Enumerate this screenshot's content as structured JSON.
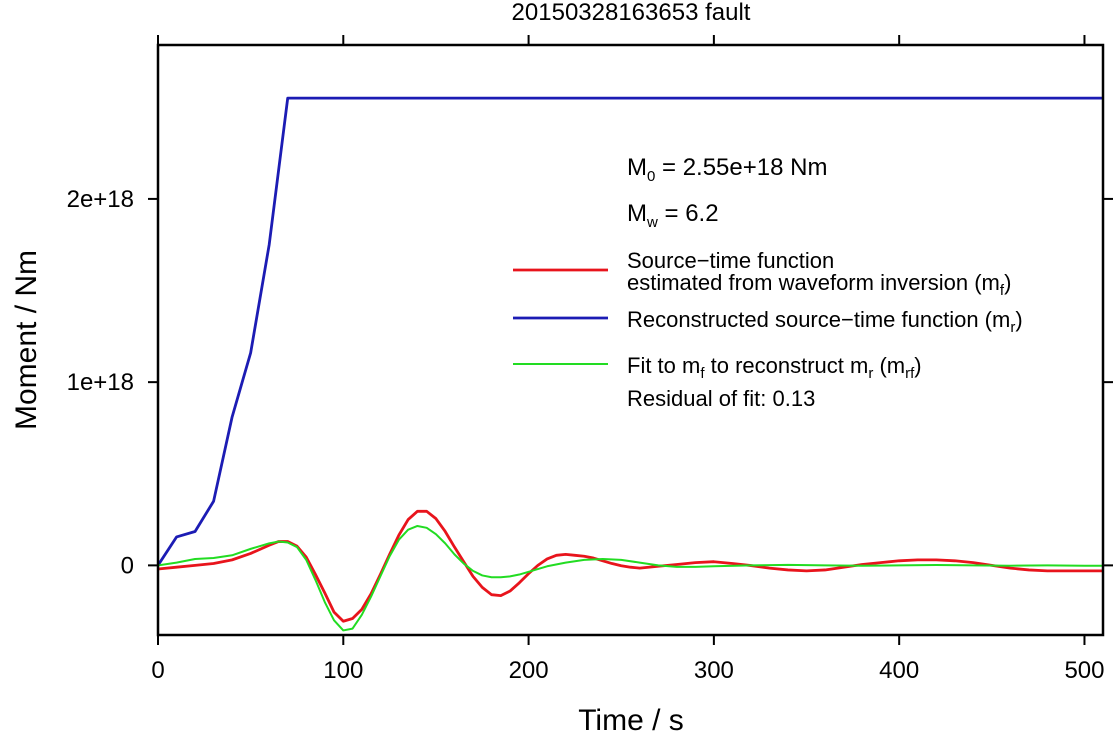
{
  "chart_data": {
    "type": "line",
    "title": "20150328163653 fault",
    "xlabel": "Time / s",
    "ylabel": "Moment / Nm",
    "xlim": [
      0,
      510
    ],
    "ylim": [
      -3.8e+17,
      2.84e+18
    ],
    "x_ticks": [
      0,
      100,
      200,
      300,
      400,
      500
    ],
    "x_tick_labels": [
      "0",
      "100",
      "200",
      "300",
      "400",
      "500"
    ],
    "y_ticks": [
      0,
      1e+18,
      2e+18
    ],
    "y_tick_labels": [
      "0",
      "1e+18",
      "2e+18"
    ],
    "grid": false,
    "legend_position": "top-right",
    "annotations": {
      "m0_symbol": "M",
      "m0_sub": "0",
      "m0_text": " = 2.55e+18 Nm",
      "mw_symbol": "M",
      "mw_sub": "w",
      "mw_text": " = 6.2",
      "residual": "Residual of fit: 0.13"
    },
    "legend": [
      {
        "color": "#e8141c",
        "lines": [
          [
            {
              "t": "Source−time function"
            }
          ],
          [
            {
              "t": "estimated from waveform inversion (m"
            },
            {
              "t": "f",
              "sub": true
            },
            {
              "t": ")"
            }
          ]
        ]
      },
      {
        "color": "#1c1cb4",
        "lines": [
          [
            {
              "t": "Reconstructed source−time function (m"
            },
            {
              "t": "r",
              "sub": true
            },
            {
              "t": ")"
            }
          ]
        ]
      },
      {
        "color": "#22dc22",
        "lines": [
          [
            {
              "t": "Fit to m"
            },
            {
              "t": "f",
              "sub": true
            },
            {
              "t": " to reconstruct m"
            },
            {
              "t": "r",
              "sub": true
            },
            {
              "t": " (m"
            },
            {
              "t": "rf",
              "sub": true
            },
            {
              "t": ")"
            }
          ]
        ]
      }
    ],
    "series": [
      {
        "color": "#e8141c",
        "width": 2.8,
        "x": [
          0,
          10,
          20,
          30,
          40,
          50,
          60,
          65,
          70,
          75,
          80,
          85,
          90,
          95,
          100,
          105,
          110,
          115,
          120,
          125,
          130,
          135,
          140,
          145,
          150,
          155,
          160,
          165,
          170,
          175,
          180,
          185,
          190,
          195,
          200,
          205,
          210,
          215,
          220,
          225,
          230,
          235,
          240,
          245,
          250,
          255,
          260,
          270,
          280,
          290,
          300,
          310,
          320,
          330,
          340,
          350,
          360,
          370,
          380,
          390,
          400,
          410,
          420,
          430,
          440,
          450,
          460,
          470,
          480,
          490,
          500,
          510
        ],
        "y": [
          -2e+16,
          -1e+16,
          0,
          1e+16,
          3e+16,
          6.5e+16,
          1.1e+17,
          1.3e+17,
          1.3e+17,
          1.05e+17,
          4.5e+16,
          -5e+16,
          -1.5e+17,
          -2.55e+17,
          -3.05e+17,
          -2.9e+17,
          -2.4e+17,
          -1.55e+17,
          -5e+16,
          6e+16,
          1.65e+17,
          2.5e+17,
          2.95e+17,
          2.95e+17,
          2.55e+17,
          1.85e+17,
          1e+17,
          2e+16,
          -6e+16,
          -1.2e+17,
          -1.6e+17,
          -1.65e+17,
          -1.4e+17,
          -9.5e+16,
          -4.5e+16,
          0,
          3.5e+16,
          5.5e+16,
          6e+16,
          5.5e+16,
          5e+16,
          4e+16,
          2.5e+16,
          1e+16,
          -2000000000000000.0,
          -1e+16,
          -1.5e+16,
          -5000000000000000.0,
          5000000000000000.0,
          1.5e+16,
          2e+16,
          1e+16,
          -1000000000000000.0,
          -1.5e+16,
          -2.5e+16,
          -3e+16,
          -2.5e+16,
          -1e+16,
          5000000000000000.0,
          1.5e+16,
          2.5e+16,
          3e+16,
          3e+16,
          2.5e+16,
          1.5e+16,
          0,
          -1.5e+16,
          -2.5e+16,
          -3e+16,
          -3e+16,
          -3e+16,
          -3e+16
        ]
      },
      {
        "color": "#1c1cb4",
        "width": 2.8,
        "x": [
          0,
          10,
          20,
          30,
          40,
          50,
          60,
          70,
          510
        ],
        "y": [
          0,
          1.55e+17,
          1.85e+17,
          3.5e+17,
          8.1e+17,
          1.16e+18,
          1.75e+18,
          2.55e+18,
          2.55e+18
        ]
      },
      {
        "color": "#22dc22",
        "width": 2.0,
        "x": [
          0,
          10,
          20,
          30,
          40,
          50,
          60,
          65,
          70,
          75,
          80,
          85,
          90,
          95,
          100,
          105,
          110,
          115,
          120,
          125,
          130,
          135,
          140,
          145,
          150,
          155,
          160,
          165,
          170,
          175,
          180,
          185,
          190,
          195,
          200,
          205,
          210,
          220,
          230,
          240,
          250,
          260,
          270,
          280,
          290,
          300,
          320,
          340,
          360,
          380,
          400,
          420,
          440,
          460,
          480,
          500,
          510
        ],
        "y": [
          0,
          1.5e+16,
          3.5e+16,
          4e+16,
          5.5e+16,
          9e+16,
          1.2e+17,
          1.3e+17,
          1.25e+17,
          1e+17,
          3e+16,
          -8e+16,
          -2e+17,
          -3e+17,
          -3.55e+17,
          -3.45e+17,
          -2.7e+17,
          -1.7e+17,
          -6e+16,
          5e+16,
          1.4e+17,
          1.95e+17,
          2.15e+17,
          2.05e+17,
          1.7e+17,
          1.2e+17,
          6e+16,
          1e+16,
          -3e+16,
          -5.5e+16,
          -6.5e+16,
          -6.5e+16,
          -6e+16,
          -5e+16,
          -3.5e+16,
          -2e+16,
          -5000000000000000.0,
          1.5e+16,
          3e+16,
          3.5e+16,
          3e+16,
          1.5e+16,
          0,
          -8000000000000000.0,
          -8000000000000000.0,
          -5000000000000000.0,
          0,
          3000000000000000.0,
          0,
          -2000000000000000.0,
          0,
          2000000000000000.0,
          0,
          -2000000000000000.0,
          0,
          -2000000000000000.0,
          -2000000000000000.0
        ]
      }
    ]
  }
}
